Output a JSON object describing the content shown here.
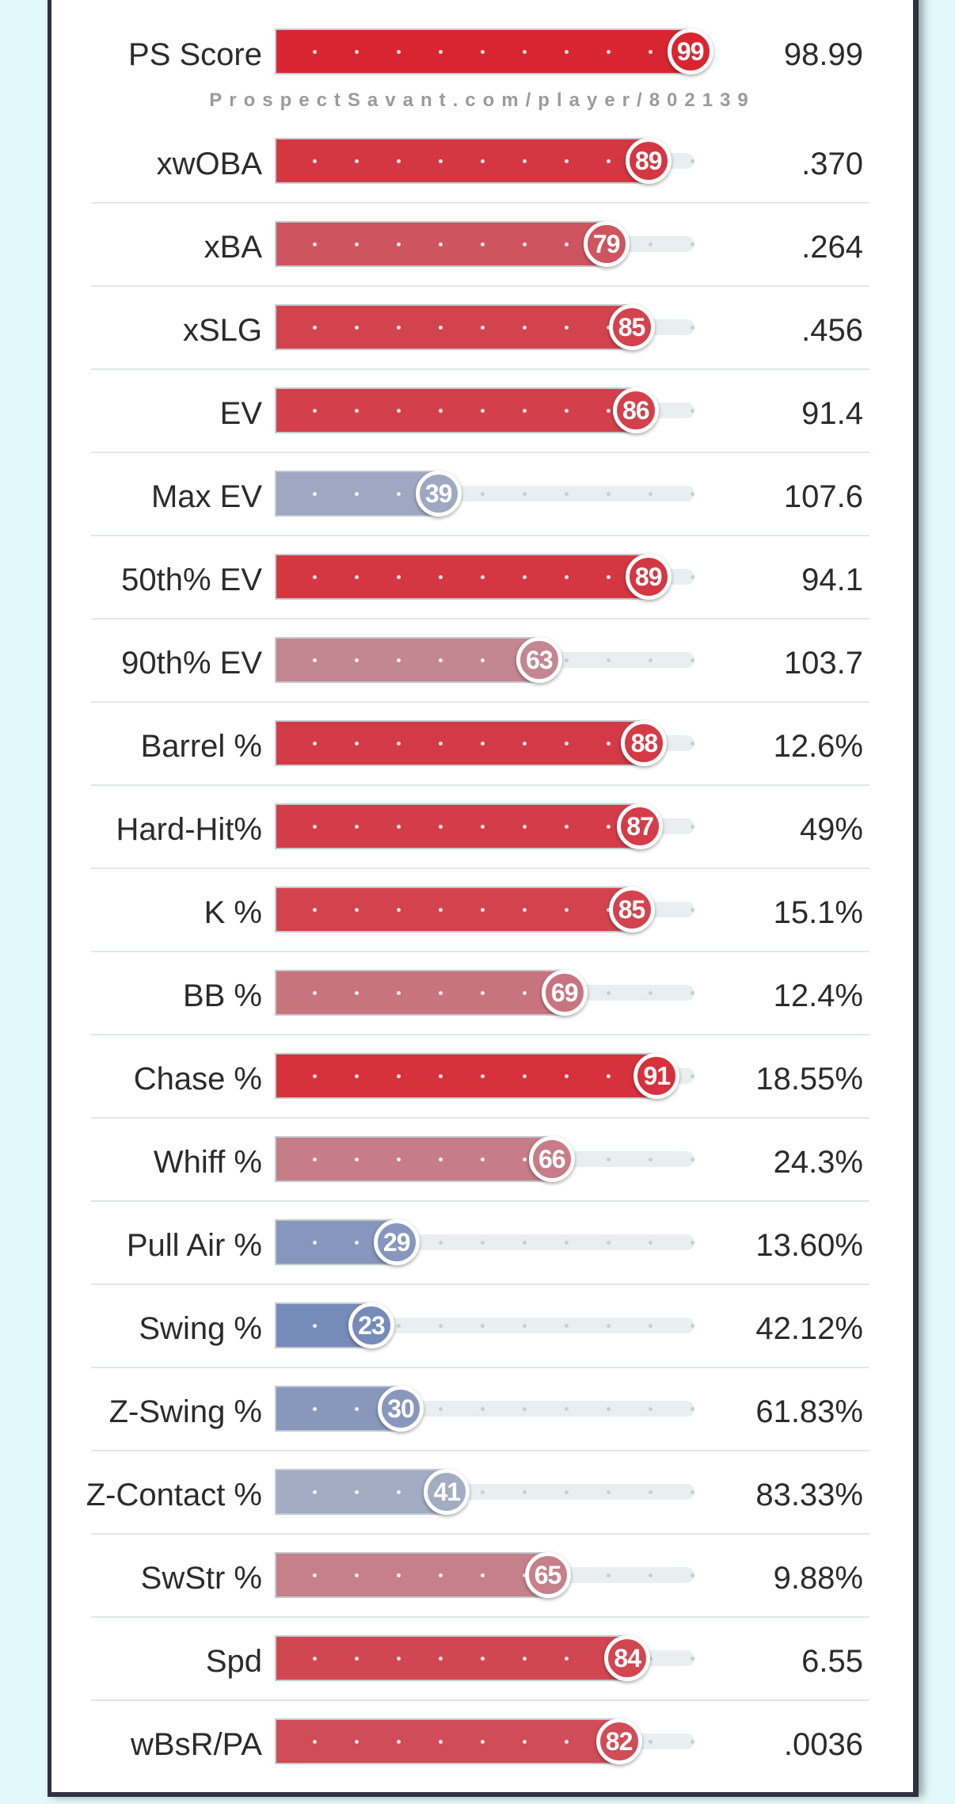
{
  "colors": {
    "high": "#d92530",
    "low": "#7086b8",
    "mid": "#b8bcc6",
    "track": "#e9eff1"
  },
  "chart_data": {
    "type": "bar",
    "title": "",
    "watermark": "ProspectSavant.com/player/802139",
    "xlim": [
      0,
      100
    ],
    "metrics": [
      {
        "label": "PS Score",
        "percentile": 99,
        "value": "98.99"
      },
      {
        "label": "xwOBA",
        "percentile": 89,
        "value": ".370"
      },
      {
        "label": "xBA",
        "percentile": 79,
        "value": ".264"
      },
      {
        "label": "xSLG",
        "percentile": 85,
        "value": ".456"
      },
      {
        "label": "EV",
        "percentile": 86,
        "value": "91.4"
      },
      {
        "label": "Max EV",
        "percentile": 39,
        "value": "107.6"
      },
      {
        "label": "50th% EV",
        "percentile": 89,
        "value": "94.1"
      },
      {
        "label": "90th% EV",
        "percentile": 63,
        "value": "103.7"
      },
      {
        "label": "Barrel %",
        "percentile": 88,
        "value": "12.6%"
      },
      {
        "label": "Hard-Hit%",
        "percentile": 87,
        "value": "49%"
      },
      {
        "label": "K %",
        "percentile": 85,
        "value": "15.1%"
      },
      {
        "label": "BB %",
        "percentile": 69,
        "value": "12.4%"
      },
      {
        "label": "Chase %",
        "percentile": 91,
        "value": "18.55%"
      },
      {
        "label": "Whiff %",
        "percentile": 66,
        "value": "24.3%"
      },
      {
        "label": "Pull Air %",
        "percentile": 29,
        "value": "13.60%"
      },
      {
        "label": "Swing %",
        "percentile": 23,
        "value": "42.12%"
      },
      {
        "label": "Z-Swing %",
        "percentile": 30,
        "value": "61.83%"
      },
      {
        "label": "Z-Contact %",
        "percentile": 41,
        "value": "83.33%"
      },
      {
        "label": "SwStr %",
        "percentile": 65,
        "value": "9.88%"
      },
      {
        "label": "Spd",
        "percentile": 84,
        "value": "6.55"
      },
      {
        "label": "wBsR/PA",
        "percentile": 82,
        "value": ".0036"
      }
    ]
  }
}
